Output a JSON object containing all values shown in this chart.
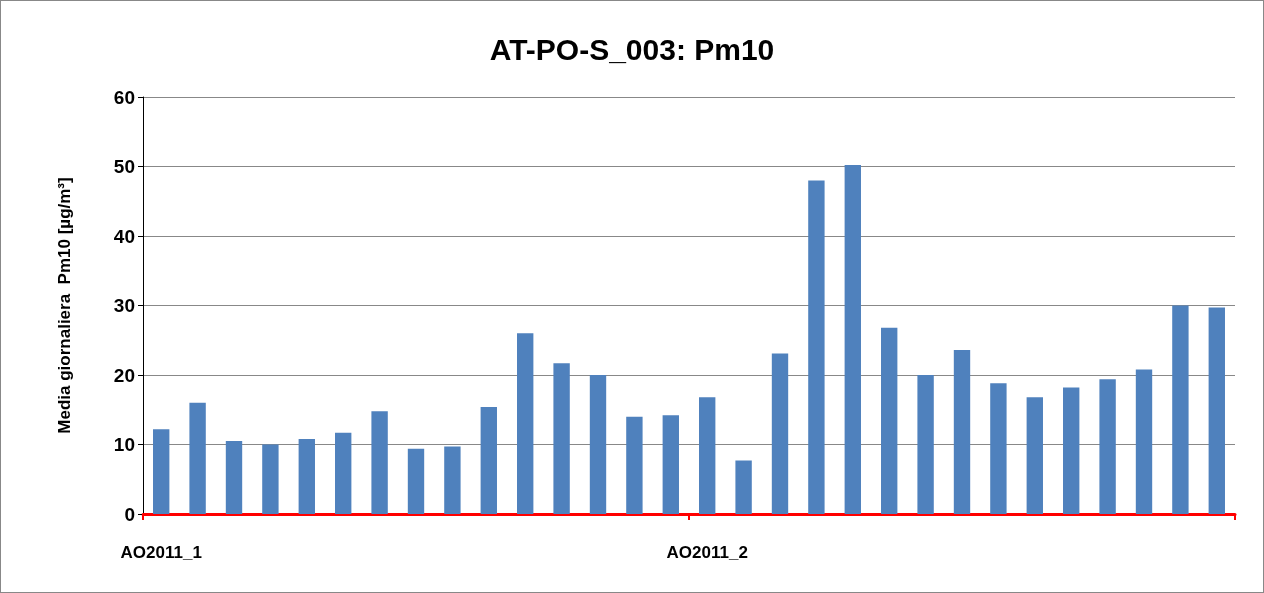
{
  "chart_data": {
    "type": "bar",
    "title": "AT-PO-S_003: Pm10",
    "ylabel": "Media giornaliera  Pm10 [µg/m³]",
    "categories": [
      "AO2011_1",
      null,
      null,
      null,
      null,
      null,
      null,
      null,
      null,
      null,
      null,
      null,
      null,
      null,
      null,
      "AO2011_2",
      null,
      null,
      null,
      null,
      null,
      null,
      null,
      null,
      null,
      null,
      null,
      null,
      null,
      null
    ],
    "values": [
      12.2,
      16,
      10.5,
      10,
      10.8,
      11.7,
      14.8,
      9.4,
      9.7,
      15.4,
      26,
      21.7,
      20,
      14,
      14.2,
      16.8,
      7.7,
      23.1,
      48,
      50.2,
      26.8,
      20,
      23.6,
      18.8,
      16.8,
      18.2,
      19.4,
      20.8,
      30,
      29.7
    ],
    "color": "#4f81bd",
    "ylim": [
      0,
      60
    ],
    "yticks": [
      0,
      10,
      20,
      30,
      40,
      50,
      60
    ],
    "grid": "y"
  }
}
